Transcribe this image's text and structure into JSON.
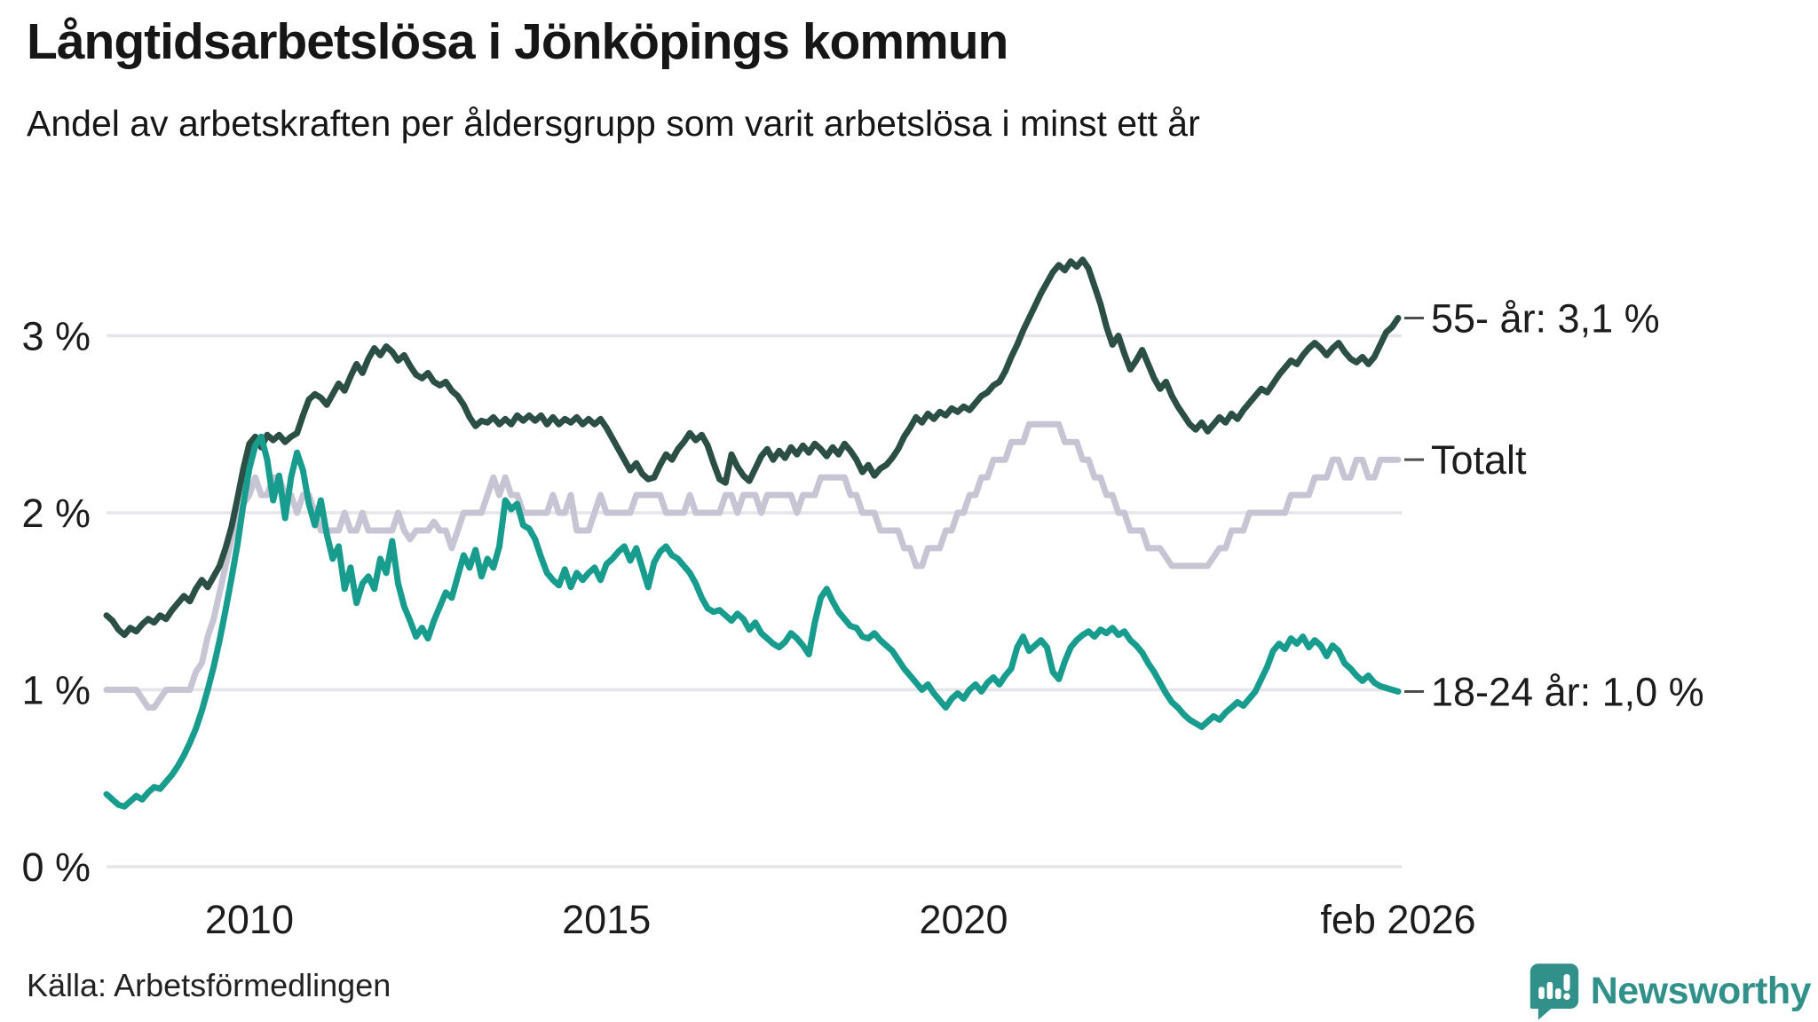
{
  "header": {
    "title": "Långtidsarbetslösa i Jönköpings kommun",
    "subtitle": "Andel av arbetskraften per åldersgrupp som varit arbetslösa i minst ett år"
  },
  "footer": {
    "source_label": "Källa: Arbetsförmedlingen",
    "brand": "Newsworthy"
  },
  "colors": {
    "age_55": "#2c4f45",
    "age_18_24": "#179c8e",
    "total": "#c7c4d4",
    "grid": "#e6e5ea",
    "text": "#1c1c1c",
    "leader_dash": "#4d4d4d",
    "brand_teal": "#31918a",
    "background": "#ffffff"
  },
  "chart_data": {
    "type": "line",
    "title": "Långtidsarbetslösa i Jönköpings kommun",
    "subtitle": "Andel av arbetskraften per åldersgrupp som varit arbetslösa i minst ett år",
    "unit": "% av arbetskraften",
    "grid": true,
    "legend_position": "end-of-line labels",
    "ylim": [
      0,
      3.6
    ],
    "x_axis": {
      "start_year": 2008,
      "start_month": 1,
      "points_per_year": 12,
      "end_label": "feb 2026"
    },
    "xticks": [
      {
        "year": 2010.0,
        "label": "2010"
      },
      {
        "year": 2015.0,
        "label": "2015"
      },
      {
        "year": 2020.0,
        "label": "2020"
      },
      {
        "year": 2026.083,
        "label": "feb 2026"
      }
    ],
    "yticks": [
      {
        "value": 0,
        "label": "0 %"
      },
      {
        "value": 1,
        "label": "1 %"
      },
      {
        "value": 2,
        "label": "2 %"
      },
      {
        "value": 3,
        "label": "3 %"
      }
    ],
    "series": [
      {
        "name": "Totalt",
        "end_label": "Totalt",
        "end_value": 2.3,
        "color_key": "total",
        "values": [
          1.0,
          1.0,
          1.0,
          1.0,
          1.0,
          1.0,
          0.95,
          0.9,
          0.9,
          0.95,
          1.0,
          1.0,
          1.0,
          1.0,
          1.0,
          1.1,
          1.15,
          1.3,
          1.4,
          1.55,
          1.7,
          1.85,
          1.95,
          2.05,
          2.1,
          2.2,
          2.1,
          2.1,
          2.2,
          2.2,
          2.1,
          2.1,
          2.0,
          2.1,
          2.1,
          2.0,
          1.9,
          1.9,
          1.9,
          1.9,
          2.0,
          1.9,
          1.9,
          2.0,
          1.9,
          1.9,
          1.9,
          1.9,
          1.9,
          2.0,
          1.9,
          1.85,
          1.9,
          1.9,
          1.9,
          1.95,
          1.9,
          1.9,
          1.8,
          1.9,
          2.0,
          2.0,
          2.0,
          2.0,
          2.1,
          2.2,
          2.1,
          2.2,
          2.1,
          2.1,
          2.0,
          2.0,
          2.0,
          2.0,
          2.0,
          2.1,
          2.0,
          2.0,
          2.1,
          1.9,
          1.9,
          1.9,
          2.0,
          2.1,
          2.0,
          2.0,
          2.0,
          2.0,
          2.0,
          2.1,
          2.1,
          2.1,
          2.1,
          2.1,
          2.0,
          2.0,
          2.0,
          2.0,
          2.1,
          2.0,
          2.0,
          2.0,
          2.0,
          2.0,
          2.1,
          2.1,
          2.0,
          2.1,
          2.1,
          2.1,
          2.0,
          2.1,
          2.1,
          2.1,
          2.1,
          2.1,
          2.0,
          2.1,
          2.1,
          2.1,
          2.2,
          2.2,
          2.2,
          2.2,
          2.2,
          2.1,
          2.1,
          2.0,
          2.0,
          2.0,
          1.9,
          1.9,
          1.9,
          1.9,
          1.8,
          1.8,
          1.7,
          1.7,
          1.8,
          1.8,
          1.8,
          1.9,
          1.9,
          2.0,
          2.0,
          2.1,
          2.1,
          2.2,
          2.2,
          2.3,
          2.3,
          2.3,
          2.4,
          2.4,
          2.4,
          2.5,
          2.5,
          2.5,
          2.5,
          2.5,
          2.5,
          2.4,
          2.4,
          2.4,
          2.3,
          2.3,
          2.2,
          2.2,
          2.1,
          2.1,
          2.0,
          2.0,
          1.9,
          1.9,
          1.9,
          1.8,
          1.8,
          1.8,
          1.75,
          1.7,
          1.7,
          1.7,
          1.7,
          1.7,
          1.7,
          1.7,
          1.75,
          1.8,
          1.8,
          1.9,
          1.9,
          1.9,
          2.0,
          2.0,
          2.0,
          2.0,
          2.0,
          2.0,
          2.0,
          2.1,
          2.1,
          2.1,
          2.1,
          2.2,
          2.2,
          2.2,
          2.3,
          2.3,
          2.2,
          2.2,
          2.3,
          2.3,
          2.2,
          2.2,
          2.3,
          2.3,
          2.3,
          2.3
        ]
      },
      {
        "name": "55- år",
        "end_label": "55- år: 3,1 %",
        "end_value": 3.1,
        "color_key": "age_55",
        "values": [
          1.42,
          1.39,
          1.34,
          1.31,
          1.35,
          1.33,
          1.37,
          1.4,
          1.38,
          1.42,
          1.4,
          1.45,
          1.49,
          1.53,
          1.5,
          1.57,
          1.62,
          1.58,
          1.64,
          1.7,
          1.8,
          1.92,
          2.08,
          2.25,
          2.39,
          2.43,
          2.37,
          2.44,
          2.41,
          2.44,
          2.4,
          2.43,
          2.45,
          2.55,
          2.64,
          2.67,
          2.65,
          2.61,
          2.67,
          2.73,
          2.69,
          2.77,
          2.84,
          2.79,
          2.87,
          2.93,
          2.89,
          2.94,
          2.91,
          2.86,
          2.89,
          2.83,
          2.78,
          2.76,
          2.79,
          2.74,
          2.72,
          2.74,
          2.69,
          2.66,
          2.61,
          2.54,
          2.49,
          2.52,
          2.51,
          2.54,
          2.5,
          2.53,
          2.5,
          2.55,
          2.52,
          2.55,
          2.52,
          2.55,
          2.5,
          2.54,
          2.5,
          2.53,
          2.51,
          2.54,
          2.5,
          2.53,
          2.5,
          2.53,
          2.48,
          2.42,
          2.36,
          2.3,
          2.24,
          2.28,
          2.22,
          2.19,
          2.2,
          2.27,
          2.33,
          2.3,
          2.36,
          2.4,
          2.45,
          2.41,
          2.44,
          2.38,
          2.28,
          2.19,
          2.17,
          2.33,
          2.26,
          2.21,
          2.18,
          2.25,
          2.32,
          2.36,
          2.3,
          2.35,
          2.31,
          2.37,
          2.33,
          2.38,
          2.34,
          2.39,
          2.36,
          2.32,
          2.37,
          2.33,
          2.39,
          2.35,
          2.3,
          2.23,
          2.27,
          2.21,
          2.25,
          2.27,
          2.31,
          2.36,
          2.43,
          2.48,
          2.54,
          2.51,
          2.56,
          2.53,
          2.57,
          2.55,
          2.59,
          2.57,
          2.6,
          2.58,
          2.62,
          2.66,
          2.68,
          2.72,
          2.74,
          2.8,
          2.88,
          2.95,
          3.03,
          3.1,
          3.17,
          3.24,
          3.3,
          3.36,
          3.4,
          3.37,
          3.42,
          3.39,
          3.43,
          3.38,
          3.28,
          3.18,
          3.05,
          2.95,
          3.0,
          2.9,
          2.81,
          2.86,
          2.92,
          2.84,
          2.76,
          2.7,
          2.74,
          2.66,
          2.6,
          2.55,
          2.5,
          2.47,
          2.51,
          2.46,
          2.5,
          2.54,
          2.51,
          2.56,
          2.53,
          2.58,
          2.62,
          2.66,
          2.7,
          2.68,
          2.73,
          2.78,
          2.82,
          2.86,
          2.84,
          2.89,
          2.93,
          2.96,
          2.93,
          2.89,
          2.93,
          2.96,
          2.91,
          2.87,
          2.85,
          2.88,
          2.84,
          2.88,
          2.95,
          3.02,
          3.05,
          3.1
        ]
      },
      {
        "name": "18-24 år",
        "end_label": "18-24 år: 1,0 %",
        "end_value": 1.0,
        "color_key": "age_18_24",
        "values": [
          0.41,
          0.38,
          0.35,
          0.34,
          0.37,
          0.4,
          0.38,
          0.42,
          0.45,
          0.44,
          0.48,
          0.52,
          0.57,
          0.63,
          0.7,
          0.78,
          0.88,
          1.0,
          1.13,
          1.28,
          1.45,
          1.63,
          1.82,
          2.05,
          2.25,
          2.38,
          2.43,
          2.3,
          2.07,
          2.21,
          1.97,
          2.2,
          2.34,
          2.24,
          2.05,
          1.93,
          2.07,
          1.88,
          1.74,
          1.81,
          1.57,
          1.69,
          1.49,
          1.6,
          1.64,
          1.57,
          1.74,
          1.66,
          1.84,
          1.6,
          1.47,
          1.39,
          1.3,
          1.35,
          1.29,
          1.39,
          1.47,
          1.55,
          1.52,
          1.64,
          1.76,
          1.69,
          1.79,
          1.64,
          1.74,
          1.69,
          1.81,
          2.07,
          2.02,
          2.05,
          1.93,
          1.91,
          1.85,
          1.75,
          1.66,
          1.62,
          1.59,
          1.68,
          1.58,
          1.66,
          1.62,
          1.66,
          1.69,
          1.62,
          1.71,
          1.74,
          1.78,
          1.81,
          1.73,
          1.8,
          1.69,
          1.58,
          1.72,
          1.78,
          1.81,
          1.76,
          1.74,
          1.7,
          1.66,
          1.6,
          1.52,
          1.46,
          1.44,
          1.45,
          1.42,
          1.39,
          1.43,
          1.4,
          1.34,
          1.38,
          1.32,
          1.29,
          1.26,
          1.24,
          1.27,
          1.32,
          1.29,
          1.25,
          1.2,
          1.38,
          1.52,
          1.57,
          1.5,
          1.44,
          1.4,
          1.36,
          1.35,
          1.3,
          1.29,
          1.32,
          1.28,
          1.25,
          1.22,
          1.17,
          1.12,
          1.08,
          1.04,
          1.0,
          1.03,
          0.98,
          0.94,
          0.9,
          0.95,
          0.98,
          0.95,
          1.0,
          1.03,
          0.99,
          1.04,
          1.07,
          1.03,
          1.08,
          1.12,
          1.24,
          1.3,
          1.22,
          1.25,
          1.28,
          1.24,
          1.1,
          1.06,
          1.16,
          1.24,
          1.28,
          1.31,
          1.33,
          1.3,
          1.34,
          1.32,
          1.35,
          1.31,
          1.33,
          1.28,
          1.25,
          1.21,
          1.15,
          1.1,
          1.04,
          0.98,
          0.93,
          0.9,
          0.86,
          0.83,
          0.81,
          0.79,
          0.82,
          0.85,
          0.83,
          0.87,
          0.9,
          0.93,
          0.91,
          0.95,
          0.99,
          1.06,
          1.13,
          1.22,
          1.26,
          1.23,
          1.29,
          1.26,
          1.3,
          1.24,
          1.28,
          1.25,
          1.19,
          1.25,
          1.22,
          1.15,
          1.12,
          1.08,
          1.05,
          1.08,
          1.04,
          1.02,
          1.01,
          1.0,
          0.99
        ]
      }
    ]
  }
}
